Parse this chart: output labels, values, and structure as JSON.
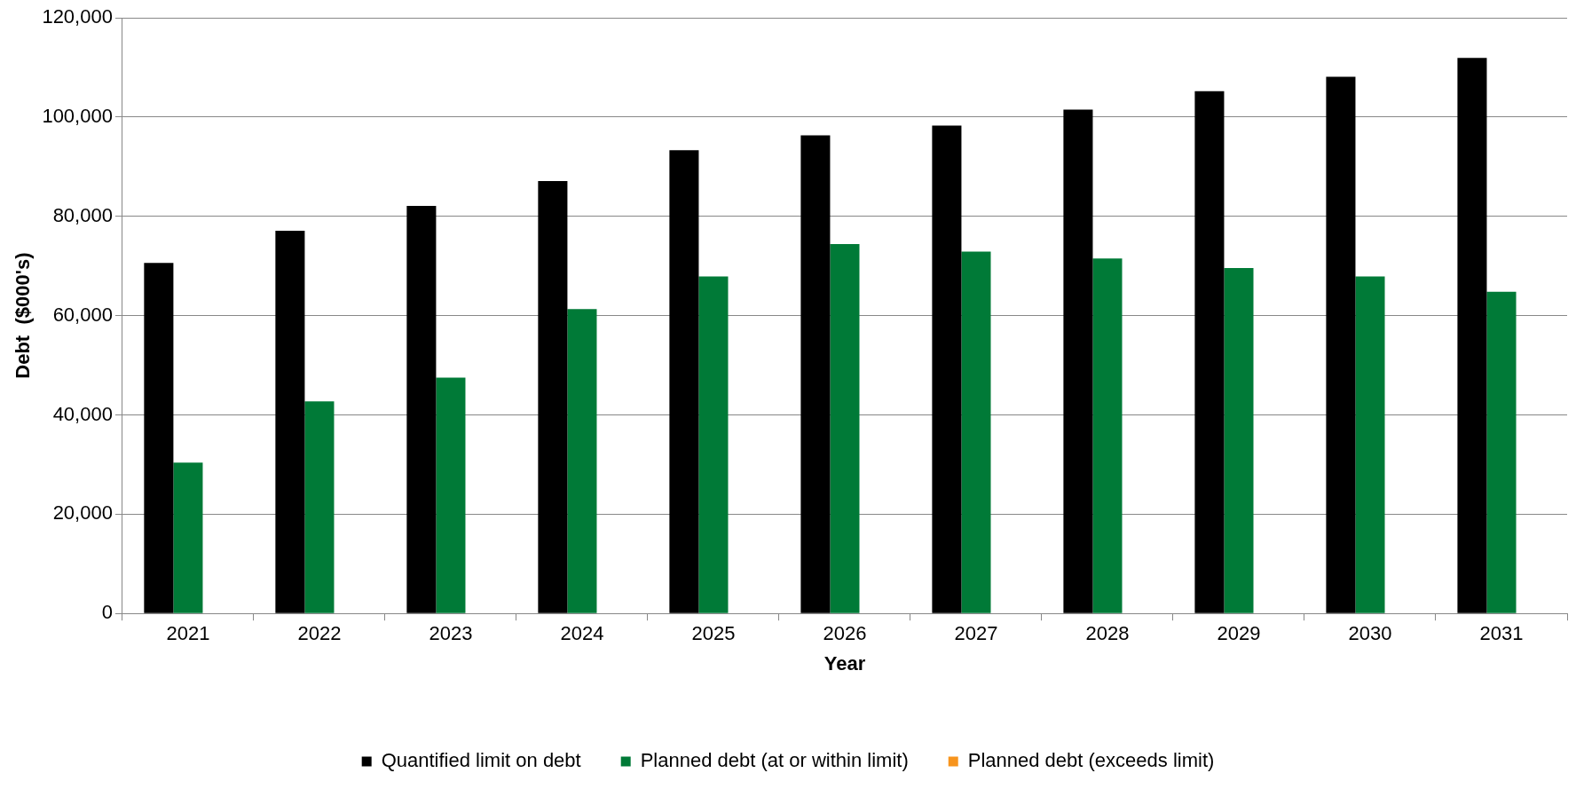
{
  "chart_data": {
    "type": "bar",
    "xlabel": "Year",
    "ylabel": "Debt  ($000's)",
    "categories": [
      "2021",
      "2022",
      "2023",
      "2024",
      "2025",
      "2026",
      "2027",
      "2028",
      "2029",
      "2030",
      "2031"
    ],
    "series": [
      {
        "name": "Quantified limit on debt",
        "color": "#000000",
        "values": [
          70600,
          77100,
          82100,
          87100,
          93300,
          96300,
          98300,
          101500,
          105200,
          108100,
          111900
        ]
      },
      {
        "name": "Planned debt (at or within limit)",
        "color": "#007a37",
        "values": [
          30400,
          42700,
          47500,
          61300,
          67900,
          74400,
          72900,
          71500,
          69600,
          67900,
          64800
        ]
      },
      {
        "name": "Planned debt (exceeds limit)",
        "color": "#f7941d",
        "values": [
          null,
          null,
          null,
          null,
          null,
          null,
          null,
          null,
          null,
          null,
          null
        ]
      }
    ],
    "ylim": [
      0,
      120000
    ],
    "yticks": [
      {
        "value": 0,
        "label": "0"
      },
      {
        "value": 20000,
        "label": "20,000"
      },
      {
        "value": 40000,
        "label": "40,000"
      },
      {
        "value": 60000,
        "label": "60,000"
      },
      {
        "value": 80000,
        "label": "80,000"
      },
      {
        "value": 100000,
        "label": "100,000"
      },
      {
        "value": 120000,
        "label": "120,000"
      }
    ],
    "grid": "y",
    "legend": "bottom"
  }
}
